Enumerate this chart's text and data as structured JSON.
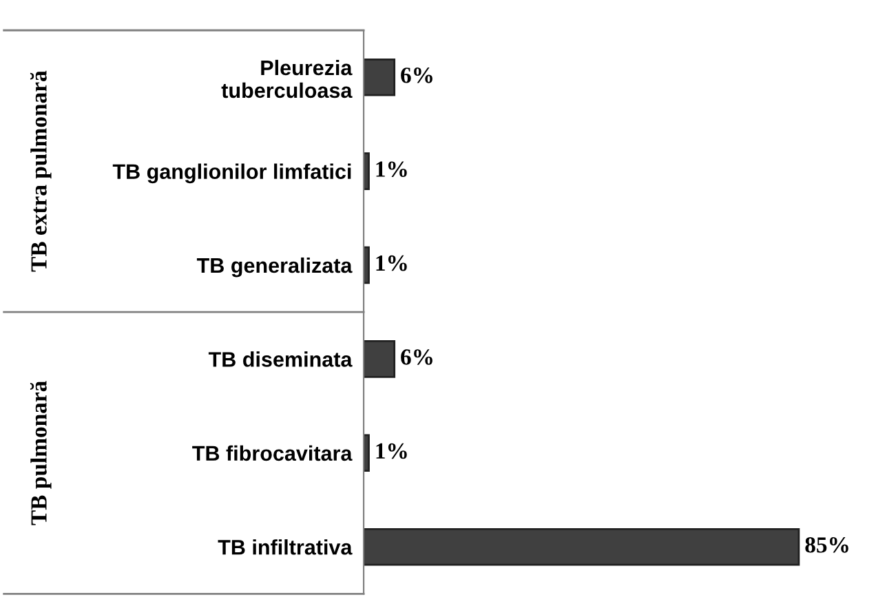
{
  "chart_data": {
    "type": "bar",
    "orientation": "horizontal",
    "categories": [
      "Pleurezia\ntuberculoasa",
      "TB ganglionilor limfatici",
      "TB generalizata",
      "TB diseminata",
      "TB fibrocavitara",
      "TB infiltrativa"
    ],
    "values": [
      6,
      1,
      1,
      6,
      1,
      85
    ],
    "value_labels": [
      "6%",
      "1%",
      "1%",
      "6%",
      "1%",
      "85%"
    ],
    "color": "#404040",
    "annotations": [
      "TB extra pulmonară",
      "TB pulmonară"
    ],
    "grid": false,
    "legend": false
  }
}
